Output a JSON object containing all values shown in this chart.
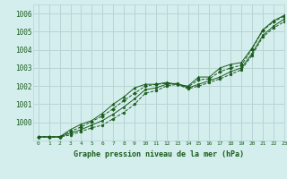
{
  "title": "Graphe pression niveau de la mer (hPa)",
  "background_color": "#d4eeee",
  "grid_color": "#b8d4d4",
  "line_color": "#1a5c1a",
  "xlim": [
    -0.5,
    23
  ],
  "ylim": [
    999.0,
    1006.5
  ],
  "xticks": [
    0,
    1,
    2,
    3,
    4,
    5,
    6,
    7,
    8,
    9,
    10,
    11,
    12,
    13,
    14,
    15,
    16,
    17,
    18,
    19,
    20,
    21,
    22,
    23
  ],
  "yticks": [
    1000,
    1001,
    1002,
    1003,
    1004,
    1005,
    1006
  ],
  "series": [
    {
      "x": [
        0,
        1,
        2,
        3,
        4,
        5,
        6,
        7,
        8,
        9,
        10,
        11,
        12,
        13,
        14,
        15,
        16,
        17,
        18,
        19,
        20,
        21,
        22,
        23
      ],
      "y": [
        999.2,
        999.2,
        999.2,
        999.6,
        999.9,
        1000.1,
        1000.5,
        1001.0,
        1001.4,
        1001.9,
        1002.1,
        1002.1,
        1002.2,
        1002.1,
        1002.0,
        1002.5,
        1002.5,
        1003.0,
        1003.2,
        1003.3,
        1004.1,
        1005.1,
        1005.6,
        1005.9
      ],
      "marker": "^",
      "linestyle": "-",
      "markersize": 2.2
    },
    {
      "x": [
        0,
        1,
        2,
        3,
        4,
        5,
        6,
        7,
        8,
        9,
        10,
        11,
        12,
        13,
        14,
        15,
        16,
        17,
        18,
        19,
        20,
        21,
        22,
        23
      ],
      "y": [
        999.2,
        999.2,
        999.2,
        999.5,
        999.75,
        1000.05,
        1000.35,
        1000.75,
        1001.2,
        1001.6,
        1002.0,
        1002.1,
        1002.15,
        1002.1,
        1001.95,
        1002.35,
        1002.4,
        1002.8,
        1003.0,
        1003.15,
        1004.05,
        1005.05,
        1005.55,
        1005.85
      ],
      "marker": "D",
      "linestyle": "--",
      "markersize": 2.0
    },
    {
      "x": [
        0,
        1,
        2,
        3,
        4,
        5,
        6,
        7,
        8,
        9,
        10,
        11,
        12,
        13,
        14,
        15,
        16,
        17,
        18,
        19,
        20,
        21,
        22,
        23
      ],
      "y": [
        999.2,
        999.2,
        999.2,
        999.4,
        999.6,
        999.85,
        1000.1,
        1000.45,
        1000.85,
        1001.3,
        1001.8,
        1001.9,
        1002.1,
        1002.15,
        1001.9,
        1002.1,
        1002.3,
        1002.5,
        1002.8,
        1003.0,
        1003.8,
        1004.8,
        1005.3,
        1005.7
      ],
      "marker": "s",
      "linestyle": "-",
      "markersize": 2.0
    },
    {
      "x": [
        0,
        1,
        2,
        3,
        4,
        5,
        6,
        7,
        8,
        9,
        10,
        11,
        12,
        13,
        14,
        15,
        16,
        17,
        18,
        19,
        20,
        21,
        22,
        23
      ],
      "y": [
        999.2,
        999.2,
        999.2,
        999.3,
        999.5,
        999.7,
        999.85,
        1000.2,
        1000.55,
        1001.0,
        1001.6,
        1001.75,
        1002.0,
        1002.1,
        1001.85,
        1002.0,
        1002.2,
        1002.4,
        1002.65,
        1002.9,
        1003.7,
        1004.7,
        1005.2,
        1005.55
      ],
      "marker": "o",
      "linestyle": "--",
      "markersize": 2.0
    }
  ]
}
